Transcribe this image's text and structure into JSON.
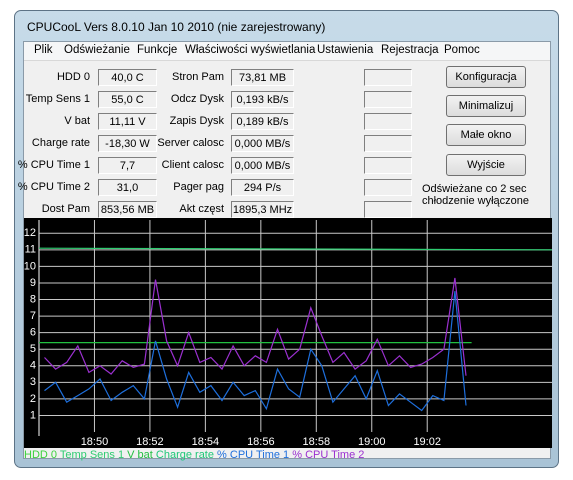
{
  "window": {
    "title": "CPUCooL  Vers 8.0.10  Jan 10 2010 (nie zarejestrowany)"
  },
  "menu": [
    "Plik",
    "Odświeżanie",
    "Funkcje",
    "Właściwości wyświetlania",
    "Ustawienia",
    "Rejestracja",
    "Pomoc"
  ],
  "left_fields": [
    {
      "label": "HDD 0",
      "value": "40,0 C"
    },
    {
      "label": "Temp Sens 1",
      "value": "55,0 C"
    },
    {
      "label": "V bat",
      "value": "11,11 V"
    },
    {
      "label": "Charge rate",
      "value": "-18,30 W"
    },
    {
      "label": "% CPU Time 1",
      "value": "7,7"
    },
    {
      "label": "% CPU Time 2",
      "value": "31,0"
    },
    {
      "label": "Dost Pam",
      "value": "853,56 MB"
    }
  ],
  "middle_fields": [
    {
      "label": "Stron Pam",
      "value": "73,81 MB"
    },
    {
      "label": "Odcz Dysk",
      "value": "0,193 kB/s"
    },
    {
      "label": "Zapis Dysk",
      "value": "0,189 kB/s"
    },
    {
      "label": "Server calosc",
      "value": "0,000 MB/s"
    },
    {
      "label": "Client calosc",
      "value": "0,000 MB/s"
    },
    {
      "label": "Pager pag",
      "value": "294 P/s"
    },
    {
      "label": "Akt częst",
      "value": "1895,3 MHz"
    }
  ],
  "buttons": [
    "Konfiguracja",
    "Minimalizuj",
    "Małe okno",
    "Wyjście"
  ],
  "status": [
    "Odświeżane co 2 sec",
    "chłodzenie wyłączone"
  ],
  "chart_data": {
    "type": "line",
    "ylim": [
      0,
      12.8
    ],
    "yticks": [
      1,
      2,
      3,
      4,
      5,
      6,
      7,
      8,
      9,
      10,
      11,
      12
    ],
    "xlim": [
      1128.0,
      1146.5
    ],
    "xticks": [
      {
        "value": 1130,
        "label": "18:50"
      },
      {
        "value": 1132,
        "label": "18:52"
      },
      {
        "value": 1134,
        "label": "18:54"
      },
      {
        "value": 1136,
        "label": "18:56"
      },
      {
        "value": 1138,
        "label": "18:58"
      },
      {
        "value": 1140,
        "label": "19:00"
      },
      {
        "value": 1142,
        "label": "19:02"
      }
    ],
    "grid": true,
    "series": [
      {
        "name": "HDD 0",
        "color": "#3cd23c"
      },
      {
        "name": "Temp Sens 1",
        "color": "#2ecc71",
        "x": [
          1128.0,
          1146.5
        ],
        "values": [
          11.1,
          11.0
        ]
      },
      {
        "name": "V bat",
        "color": "#22c040",
        "x": [
          1128.0,
          1143.6
        ],
        "values": [
          5.4,
          5.4
        ]
      },
      {
        "name": "Charge rate",
        "color": "#1ec878"
      },
      {
        "name": "% CPU Time 1",
        "color": "#1e6fdc",
        "x": [
          1128.2,
          1128.6,
          1129.0,
          1129.4,
          1129.8,
          1130.2,
          1130.6,
          1131.0,
          1131.4,
          1131.8,
          1132.2,
          1132.6,
          1133.0,
          1133.4,
          1133.8,
          1134.2,
          1134.6,
          1135.0,
          1135.4,
          1135.8,
          1136.2,
          1136.6,
          1137.0,
          1137.4,
          1137.8,
          1138.2,
          1138.6,
          1139.0,
          1139.4,
          1139.8,
          1140.2,
          1140.6,
          1141.0,
          1141.4,
          1141.8,
          1142.2,
          1142.6,
          1143.0,
          1143.4
        ],
        "values": [
          2.5,
          3.0,
          1.8,
          2.2,
          2.6,
          3.2,
          1.9,
          2.4,
          2.8,
          2.0,
          5.5,
          3.2,
          1.5,
          3.6,
          2.4,
          2.8,
          1.9,
          3.0,
          2.2,
          2.5,
          1.4,
          3.8,
          2.6,
          2.1,
          5.0,
          4.0,
          1.8,
          2.6,
          3.4,
          2.0,
          3.7,
          1.6,
          2.3,
          1.8,
          1.3,
          2.2,
          1.9,
          8.5,
          1.6
        ]
      },
      {
        "name": "% CPU Time 2",
        "color": "#9b30d0",
        "x": [
          1128.2,
          1128.6,
          1129.0,
          1129.4,
          1129.8,
          1130.2,
          1130.6,
          1131.0,
          1131.4,
          1131.8,
          1132.2,
          1132.6,
          1133.0,
          1133.4,
          1133.8,
          1134.2,
          1134.6,
          1135.0,
          1135.4,
          1135.8,
          1136.2,
          1136.6,
          1137.0,
          1137.4,
          1137.8,
          1138.2,
          1138.6,
          1139.0,
          1139.4,
          1139.8,
          1140.2,
          1140.6,
          1141.0,
          1141.4,
          1141.8,
          1142.2,
          1142.6,
          1143.0,
          1143.4
        ],
        "values": [
          4.5,
          3.8,
          4.2,
          5.2,
          3.6,
          4.0,
          3.5,
          4.3,
          3.9,
          4.1,
          9.2,
          5.5,
          4.0,
          6.0,
          4.2,
          4.5,
          3.8,
          5.2,
          4.0,
          4.6,
          4.2,
          6.2,
          4.4,
          5.0,
          7.5,
          5.8,
          4.2,
          4.8,
          3.8,
          4.3,
          5.6,
          4.0,
          4.6,
          3.9,
          4.1,
          4.5,
          5.0,
          9.3,
          3.4
        ]
      }
    ]
  }
}
